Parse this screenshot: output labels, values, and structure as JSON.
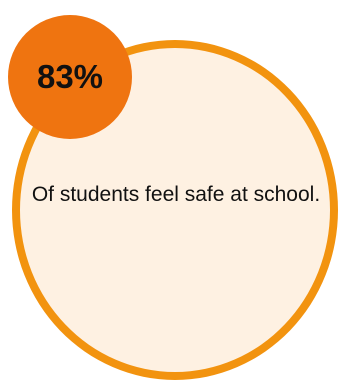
{
  "stat": {
    "value": "83%",
    "description": "Of students feel safe at school."
  },
  "colors": {
    "ring": "#F2930F",
    "fill": "#FEF1E2",
    "badge": "#EF7410",
    "text": "#111111"
  }
}
